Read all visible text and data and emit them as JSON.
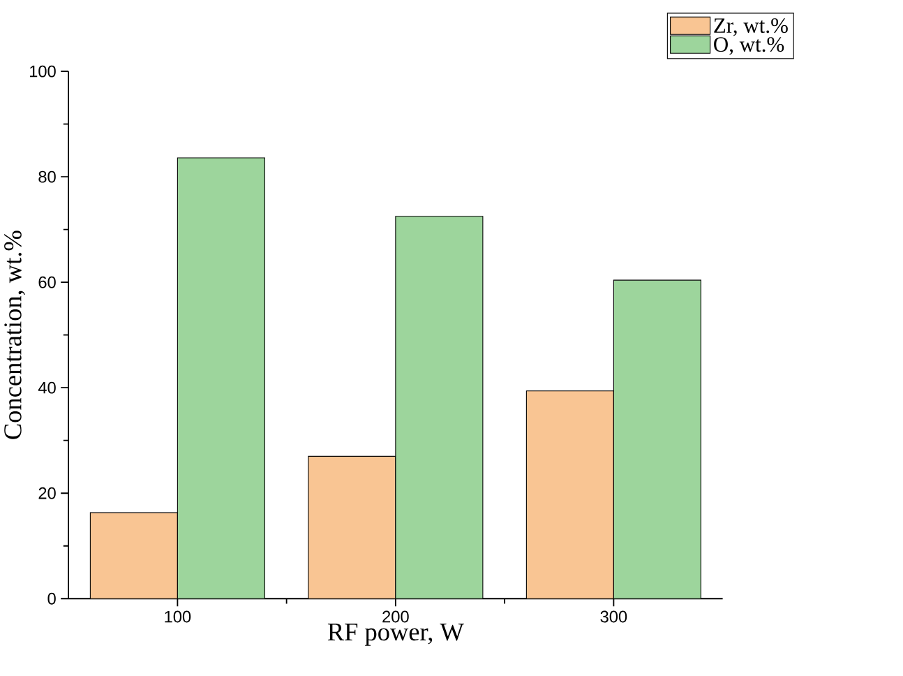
{
  "chart_data": {
    "type": "bar",
    "xlabel": "RF power, W",
    "ylabel": "Concentration, wt.%",
    "categories": [
      "100",
      "200",
      "300"
    ],
    "series": [
      {
        "name": "Zr, wt.%",
        "color": "#f9c593",
        "values": [
          16.3,
          27.0,
          39.4
        ]
      },
      {
        "name": "O, wt.%",
        "color": "#9dd59c",
        "values": [
          83.6,
          72.5,
          60.4
        ]
      }
    ],
    "ylim": [
      0,
      100
    ],
    "yticks": [
      0,
      20,
      40,
      60,
      80,
      100
    ],
    "grid": false,
    "legend": "top right"
  }
}
